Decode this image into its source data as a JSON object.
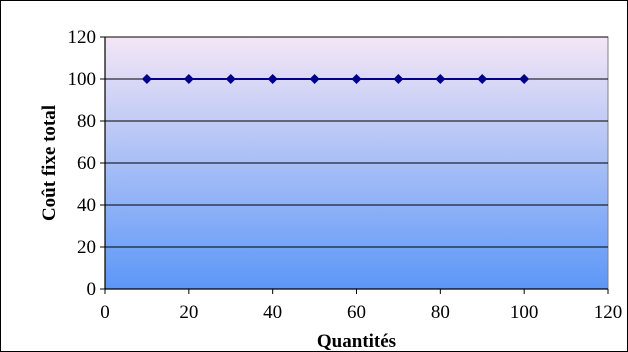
{
  "chart_data": {
    "type": "line",
    "title": "",
    "xlabel": "Quantités",
    "ylabel": "Coût fixe total",
    "xlim": [
      0,
      120
    ],
    "ylim": [
      0,
      120
    ],
    "x_ticks": [
      0,
      20,
      40,
      60,
      80,
      100,
      120
    ],
    "y_ticks": [
      0,
      20,
      40,
      60,
      80,
      100,
      120
    ],
    "grid": "horizontal",
    "legend": "none",
    "series": [
      {
        "x": [
          10,
          20,
          30,
          40,
          50,
          60,
          70,
          80,
          90,
          100
        ],
        "y": [
          100,
          100,
          100,
          100,
          100,
          100,
          100,
          100,
          100,
          100
        ],
        "color": "#00008B",
        "marker": "diamond"
      }
    ],
    "plot_background": {
      "gradient_top": "#F4E6F6",
      "gradient_bottom": "#5C97F7"
    }
  }
}
